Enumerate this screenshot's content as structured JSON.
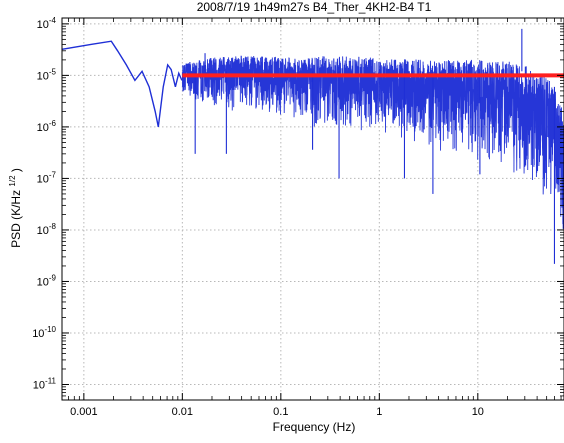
{
  "chart_data": {
    "type": "line",
    "title": "2008/7/19 1h49m27s B4_Ther_4KH2-B4 T1",
    "xlabel": "Frequency (Hz)",
    "ylabel_main": "PSD (K/Hz",
    "ylabel_exp": "1/2",
    "ylabel_close": ")",
    "xscale": "log",
    "yscale": "log",
    "xlim": [
      0.0006,
      75
    ],
    "ylim": [
      5e-12,
      0.00013
    ],
    "grid": true,
    "x_ticks": [
      {
        "value": 0.001,
        "label": "0.001"
      },
      {
        "value": 0.01,
        "label": "0.01"
      },
      {
        "value": 0.1,
        "label": "0.1"
      },
      {
        "value": 1,
        "label": "1"
      },
      {
        "value": 10,
        "label": "10"
      }
    ],
    "y_ticks": [
      {
        "value": 0.0001,
        "base": "10",
        "exp": "-4"
      },
      {
        "value": 1e-05,
        "base": "10",
        "exp": "-5"
      },
      {
        "value": 1e-06,
        "base": "10",
        "exp": "-6"
      },
      {
        "value": 1e-07,
        "base": "10",
        "exp": "-7"
      },
      {
        "value": 1e-08,
        "base": "10",
        "exp": "-8"
      },
      {
        "value": 1e-09,
        "base": "10",
        "exp": "-9"
      },
      {
        "value": 1e-10,
        "base": "10",
        "exp": "-10"
      },
      {
        "value": 1e-11,
        "base": "10",
        "exp": "-11"
      }
    ],
    "colors": {
      "psd": "#1f2fd6",
      "level": "#ff1f1f",
      "grid": "#b8b8b8"
    },
    "psd_lowfreq_points": [
      {
        "x": 0.0006,
        "y": 3.2e-05
      },
      {
        "x": 0.0012,
        "y": 4e-05
      },
      {
        "x": 0.0019,
        "y": 4.6e-05
      },
      {
        "x": 0.0022,
        "y": 3e-05
      },
      {
        "x": 0.0027,
        "y": 1.6e-05
      },
      {
        "x": 0.0033,
        "y": 8e-06
      },
      {
        "x": 0.0039,
        "y": 1.2e-05
      },
      {
        "x": 0.0046,
        "y": 6e-06
      },
      {
        "x": 0.0053,
        "y": 2e-06
      },
      {
        "x": 0.0057,
        "y": 1e-06
      },
      {
        "x": 0.0064,
        "y": 6e-06
      },
      {
        "x": 0.0071,
        "y": 1.6e-05
      },
      {
        "x": 0.0077,
        "y": 1.3e-05
      },
      {
        "x": 0.0085,
        "y": 6e-06
      },
      {
        "x": 0.0092,
        "y": 1.1e-05
      },
      {
        "x": 0.0099,
        "y": 8e-06
      }
    ],
    "psd_envelope_points": [
      {
        "x": 0.01,
        "upper": 1.7e-05,
        "lower": 4e-06
      },
      {
        "x": 0.02,
        "upper": 2.2e-05,
        "lower": 2e-06
      },
      {
        "x": 0.05,
        "upper": 2.5e-05,
        "lower": 2e-06
      },
      {
        "x": 0.1,
        "upper": 2.3e-05,
        "lower": 1.5e-06
      },
      {
        "x": 0.3,
        "upper": 2.4e-05,
        "lower": 8e-07
      },
      {
        "x": 1,
        "upper": 2.2e-05,
        "lower": 7e-07
      },
      {
        "x": 3,
        "upper": 2e-05,
        "lower": 4e-07
      },
      {
        "x": 10,
        "upper": 2e-05,
        "lower": 2e-07
      },
      {
        "x": 25,
        "upper": 1.8e-05,
        "lower": 1e-07
      },
      {
        "x": 45,
        "upper": 1.2e-05,
        "lower": 5e-08
      },
      {
        "x": 60,
        "upper": 6e-06,
        "lower": 2e-08
      },
      {
        "x": 75,
        "upper": 2e-06,
        "lower": 5e-09
      }
    ],
    "psd_spikes": [
      {
        "x": 0.0135,
        "y": 3e-07
      },
      {
        "x": 0.017,
        "y": 2.7e-05
      },
      {
        "x": 0.028,
        "y": 3e-07
      },
      {
        "x": 0.21,
        "y": 3.6e-07
      },
      {
        "x": 0.39,
        "y": 1e-07
      },
      {
        "x": 1.8,
        "y": 1e-07
      },
      {
        "x": 3.5,
        "y": 5e-08
      },
      {
        "x": 10.5,
        "y": 1.2e-07
      },
      {
        "x": 28,
        "y": 8e-05
      },
      {
        "x": 60,
        "y": 2.2e-09
      }
    ],
    "level_line": {
      "x_start": 0.01,
      "x_end": 75,
      "y": 1e-05
    }
  }
}
